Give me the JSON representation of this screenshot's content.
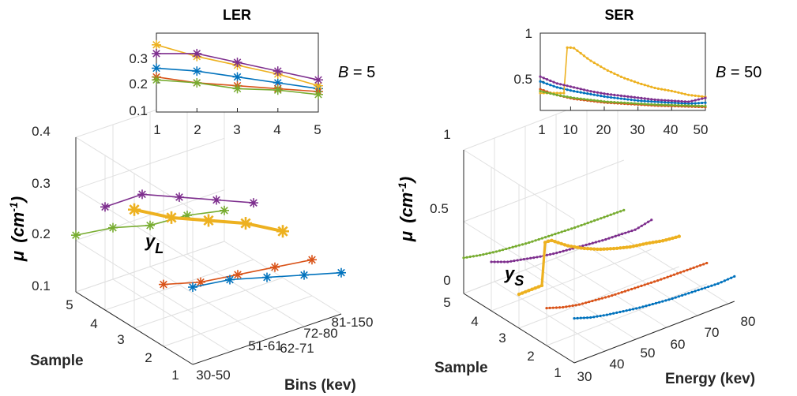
{
  "colors": {
    "s1": "#0072bd",
    "s2": "#d95319",
    "s3": "#edb120",
    "s4": "#7e2f8e",
    "s5": "#77ac30"
  },
  "chart_data": [
    {
      "type": "line",
      "title": "LER",
      "annotation": "B = 5",
      "annotation_var": "B",
      "annotation_val": "= 5",
      "x": [
        1,
        2,
        3,
        4,
        5
      ],
      "xticks": [
        "1",
        "2",
        "3",
        "4",
        "5"
      ],
      "yticks": [
        "0.1",
        "0.2",
        "0.3"
      ],
      "ylim": [
        0.1,
        0.37
      ],
      "series": [
        {
          "values": [
            0.25,
            0.24,
            0.22,
            0.2,
            0.18
          ]
        },
        {
          "values": [
            0.22,
            0.2,
            0.19,
            0.18,
            0.17
          ]
        },
        {
          "values": [
            0.33,
            0.29,
            0.26,
            0.23,
            0.19
          ]
        },
        {
          "values": [
            0.3,
            0.3,
            0.27,
            0.24,
            0.21
          ]
        },
        {
          "values": [
            0.21,
            0.2,
            0.18,
            0.175,
            0.16
          ]
        }
      ]
    },
    {
      "type": "line",
      "title": "SER",
      "annotation": "B = 50",
      "annotation_var": "B",
      "annotation_val": "= 50",
      "xticks": [
        "1",
        "10",
        "20",
        "30",
        "40",
        "50"
      ],
      "xtick_values": [
        1,
        10,
        20,
        30,
        40,
        50
      ],
      "yticks": [
        "0.5",
        "1"
      ],
      "ytick_values": [
        0.5,
        1
      ],
      "xlim": [
        1,
        50
      ],
      "ylim": [
        0.2,
        1.0
      ],
      "series": [
        {
          "bin_values": [
            0.5,
            0.44,
            0.4,
            0.37,
            0.34,
            0.32,
            0.3,
            0.29,
            0.28,
            0.27,
            0.28
          ]
        },
        {
          "bin_values": [
            0.42,
            0.36,
            0.32,
            0.3,
            0.28,
            0.27,
            0.26,
            0.25,
            0.245,
            0.24,
            0.235
          ]
        },
        {
          "bin_values": [
            0.38,
            0.38,
            0.85,
            0.72,
            0.62,
            0.54,
            0.48,
            0.43,
            0.4,
            0.36,
            0.34
          ]
        },
        {
          "bin_values": [
            0.55,
            0.48,
            0.44,
            0.4,
            0.37,
            0.35,
            0.33,
            0.31,
            0.3,
            0.29,
            0.33
          ]
        },
        {
          "bin_values": [
            0.4,
            0.36,
            0.33,
            0.31,
            0.29,
            0.28,
            0.27,
            0.26,
            0.255,
            0.25,
            0.245
          ]
        }
      ]
    },
    {
      "type": "line",
      "projection": "3d",
      "xlabel": "Bins (kev)",
      "ylabel_sym": "μ",
      "ylabel_unit": "(cm",
      "ylabel_exp": "-1",
      "ylabel_close": ")",
      "zlabel": "Sample",
      "annotation_sym": "y",
      "annotation_sub": "L",
      "xticks": [
        "30-50",
        "51-61",
        "62-71",
        "72-80",
        "81-150"
      ],
      "yticks": [
        "1",
        "2",
        "3",
        "4",
        "5"
      ],
      "zticks": [
        "0.1",
        "0.2",
        "0.3",
        "0.4"
      ],
      "zlim": [
        0.1,
        0.4
      ],
      "series": [
        {
          "sample": 1,
          "values": [
            0.25,
            0.24,
            0.22,
            0.2,
            0.18
          ]
        },
        {
          "sample": 2,
          "values": [
            0.22,
            0.2,
            0.19,
            0.18,
            0.17
          ]
        },
        {
          "sample": 3,
          "values": [
            0.33,
            0.29,
            0.26,
            0.23,
            0.19
          ]
        },
        {
          "sample": 4,
          "values": [
            0.3,
            0.3,
            0.27,
            0.24,
            0.21
          ]
        },
        {
          "sample": 5,
          "values": [
            0.21,
            0.2,
            0.18,
            0.175,
            0.16
          ]
        }
      ]
    },
    {
      "type": "line",
      "projection": "3d",
      "xlabel": "Energy (kev)",
      "ylabel_sym": "μ",
      "ylabel_unit": "(cm",
      "ylabel_exp": "-1",
      "ylabel_close": ")",
      "zlabel": "Sample",
      "annotation_sym": "y",
      "annotation_sub": "S",
      "xticks": [
        "30",
        "40",
        "50",
        "60",
        "70",
        "80"
      ],
      "yticks": [
        "1",
        "2",
        "3",
        "4",
        "5"
      ],
      "zticks": [
        "0",
        "0.5",
        "1"
      ],
      "zlim": [
        0,
        1
      ],
      "series": [
        {
          "sample": 1
        },
        {
          "sample": 2
        },
        {
          "sample": 3
        },
        {
          "sample": 4
        },
        {
          "sample": 5
        }
      ]
    }
  ]
}
